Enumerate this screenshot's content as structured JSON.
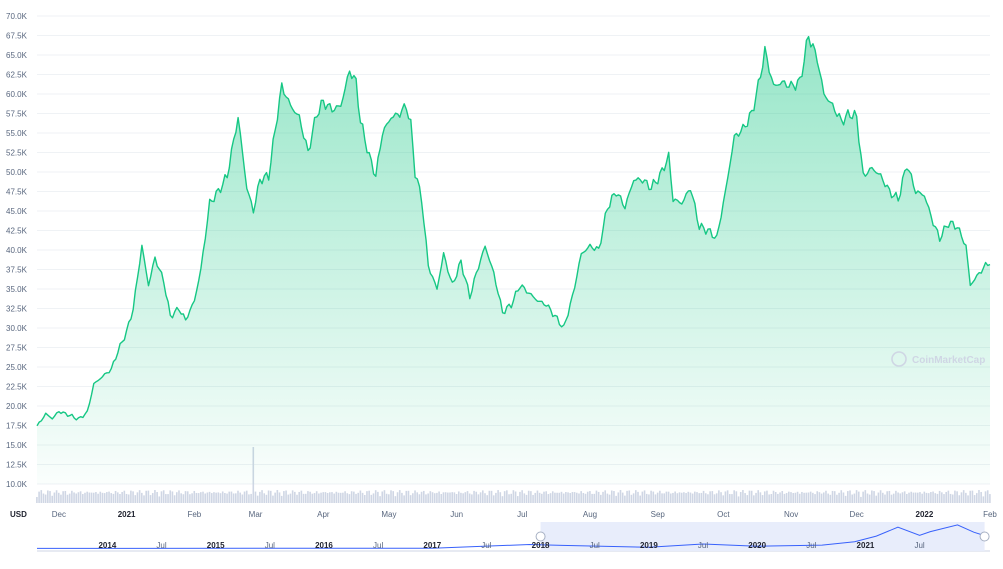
{
  "chart_data": {
    "type": "area",
    "currency": "USD",
    "watermark": "CoinMarketCap",
    "ylim": [
      0,
      70000
    ],
    "yticks": [
      10000,
      12500,
      15000,
      17500,
      20000,
      22500,
      25000,
      27500,
      30000,
      32500,
      35000,
      37500,
      40000,
      42500,
      45000,
      47500,
      50000,
      52500,
      55000,
      57500,
      60000,
      62500,
      65000,
      67500,
      70000
    ],
    "ytick_labels": [
      "10.0K",
      "12.5K",
      "15.0K",
      "17.5K",
      "20.0K",
      "22.5K",
      "25.0K",
      "27.5K",
      "30.0K",
      "32.5K",
      "35.0K",
      "37.5K",
      "40.0K",
      "42.5K",
      "45.0K",
      "47.5K",
      "50.0K",
      "52.5K",
      "55.0K",
      "57.5K",
      "60.0K",
      "62.5K",
      "65.0K",
      "67.5K",
      "70.0K"
    ],
    "x_start": "2020-11-21",
    "x_end": "2022-01-31",
    "xticks": [
      {
        "date": "2020-12-01",
        "label": "Dec",
        "bold": false
      },
      {
        "date": "2021-01-01",
        "label": "2021",
        "bold": true
      },
      {
        "date": "2021-02-01",
        "label": "Feb",
        "bold": false
      },
      {
        "date": "2021-03-01",
        "label": "Mar",
        "bold": false
      },
      {
        "date": "2021-04-01",
        "label": "Apr",
        "bold": false
      },
      {
        "date": "2021-05-01",
        "label": "May",
        "bold": false
      },
      {
        "date": "2021-06-01",
        "label": "Jun",
        "bold": false
      },
      {
        "date": "2021-07-01",
        "label": "Jul",
        "bold": false
      },
      {
        "date": "2021-08-01",
        "label": "Aug",
        "bold": false
      },
      {
        "date": "2021-09-01",
        "label": "Sep",
        "bold": false
      },
      {
        "date": "2021-10-01",
        "label": "Oct",
        "bold": false
      },
      {
        "date": "2021-11-01",
        "label": "Nov",
        "bold": false
      },
      {
        "date": "2021-12-01",
        "label": "Dec",
        "bold": false
      },
      {
        "date": "2022-01-01",
        "label": "2022",
        "bold": true
      },
      {
        "date": "2022-01-31",
        "label": "Feb",
        "bold": false
      }
    ],
    "series": [
      {
        "points": [
          [
            "2020-11-21",
            17400
          ],
          [
            "2020-11-25",
            19000
          ],
          [
            "2020-11-28",
            18400
          ],
          [
            "2020-12-01",
            19300
          ],
          [
            "2020-12-06",
            18800
          ],
          [
            "2020-12-10",
            18300
          ],
          [
            "2020-12-14",
            19200
          ],
          [
            "2020-12-17",
            22800
          ],
          [
            "2020-12-21",
            23800
          ],
          [
            "2020-12-25",
            24700
          ],
          [
            "2020-12-28",
            27000
          ],
          [
            "2021-01-01",
            29500
          ],
          [
            "2021-01-04",
            32500
          ],
          [
            "2021-01-08",
            40500
          ],
          [
            "2021-01-11",
            35500
          ],
          [
            "2021-01-14",
            39000
          ],
          [
            "2021-01-18",
            36000
          ],
          [
            "2021-01-21",
            31500
          ],
          [
            "2021-01-25",
            32500
          ],
          [
            "2021-01-28",
            31000
          ],
          [
            "2021-02-01",
            33500
          ],
          [
            "2021-02-04",
            37500
          ],
          [
            "2021-02-08",
            46000
          ],
          [
            "2021-02-12",
            47500
          ],
          [
            "2021-02-16",
            49500
          ],
          [
            "2021-02-21",
            57000
          ],
          [
            "2021-02-25",
            48000
          ],
          [
            "2021-02-28",
            45000
          ],
          [
            "2021-03-03",
            49000
          ],
          [
            "2021-03-07",
            49500
          ],
          [
            "2021-03-10",
            55500
          ],
          [
            "2021-03-13",
            61000
          ],
          [
            "2021-03-17",
            58500
          ],
          [
            "2021-03-21",
            57000
          ],
          [
            "2021-03-25",
            52500
          ],
          [
            "2021-03-29",
            57500
          ],
          [
            "2021-04-01",
            59000
          ],
          [
            "2021-04-05",
            58000
          ],
          [
            "2021-04-09",
            58500
          ],
          [
            "2021-04-13",
            63000
          ],
          [
            "2021-04-16",
            61500
          ],
          [
            "2021-04-18",
            56500
          ],
          [
            "2021-04-22",
            52000
          ],
          [
            "2021-04-25",
            49500
          ],
          [
            "2021-04-28",
            55000
          ],
          [
            "2021-05-02",
            57000
          ],
          [
            "2021-05-06",
            57500
          ],
          [
            "2021-05-09",
            58500
          ],
          [
            "2021-05-11",
            56000
          ],
          [
            "2021-05-13",
            50000
          ],
          [
            "2021-05-16",
            46500
          ],
          [
            "2021-05-19",
            38000
          ],
          [
            "2021-05-23",
            35000
          ],
          [
            "2021-05-26",
            39500
          ],
          [
            "2021-05-30",
            35500
          ],
          [
            "2021-06-03",
            38500
          ],
          [
            "2021-06-07",
            34000
          ],
          [
            "2021-06-10",
            37000
          ],
          [
            "2021-06-14",
            40500
          ],
          [
            "2021-06-18",
            37000
          ],
          [
            "2021-06-22",
            32000
          ],
          [
            "2021-06-26",
            33000
          ],
          [
            "2021-06-30",
            35500
          ],
          [
            "2021-07-04",
            34500
          ],
          [
            "2021-07-08",
            33500
          ],
          [
            "2021-07-12",
            33000
          ],
          [
            "2021-07-16",
            31500
          ],
          [
            "2021-07-20",
            30000
          ],
          [
            "2021-07-24",
            34000
          ],
          [
            "2021-07-28",
            39500
          ],
          [
            "2021-08-01",
            40500
          ],
          [
            "2021-08-05",
            40000
          ],
          [
            "2021-08-09",
            45500
          ],
          [
            "2021-08-13",
            47500
          ],
          [
            "2021-08-17",
            45500
          ],
          [
            "2021-08-21",
            49000
          ],
          [
            "2021-08-25",
            49000
          ],
          [
            "2021-08-29",
            48000
          ],
          [
            "2021-09-02",
            49500
          ],
          [
            "2021-09-06",
            52000
          ],
          [
            "2021-09-08",
            46500
          ],
          [
            "2021-09-12",
            46000
          ],
          [
            "2021-09-16",
            48000
          ],
          [
            "2021-09-20",
            43000
          ],
          [
            "2021-09-24",
            42500
          ],
          [
            "2021-09-28",
            41500
          ],
          [
            "2021-10-02",
            47500
          ],
          [
            "2021-10-06",
            54500
          ],
          [
            "2021-10-10",
            55500
          ],
          [
            "2021-10-14",
            57500
          ],
          [
            "2021-10-17",
            61000
          ],
          [
            "2021-10-20",
            65500
          ],
          [
            "2021-10-24",
            61000
          ],
          [
            "2021-10-28",
            61500
          ],
          [
            "2021-11-01",
            61000
          ],
          [
            "2021-11-05",
            61500
          ],
          [
            "2021-11-09",
            67500
          ],
          [
            "2021-11-13",
            64500
          ],
          [
            "2021-11-16",
            60000
          ],
          [
            "2021-11-20",
            58500
          ],
          [
            "2021-11-24",
            56500
          ],
          [
            "2021-11-28",
            57500
          ],
          [
            "2021-12-01",
            57000
          ],
          [
            "2021-12-04",
            49500
          ],
          [
            "2021-12-08",
            50500
          ],
          [
            "2021-12-12",
            49500
          ],
          [
            "2021-12-16",
            47500
          ],
          [
            "2021-12-20",
            46500
          ],
          [
            "2021-12-24",
            51000
          ],
          [
            "2021-12-28",
            47500
          ],
          [
            "2022-01-01",
            47000
          ],
          [
            "2022-01-05",
            43500
          ],
          [
            "2022-01-08",
            41500
          ],
          [
            "2022-01-12",
            43500
          ],
          [
            "2022-01-16",
            43000
          ],
          [
            "2022-01-20",
            40500
          ],
          [
            "2022-01-22",
            35500
          ],
          [
            "2022-01-26",
            37000
          ],
          [
            "2022-01-29",
            38000
          ],
          [
            "2022-01-31",
            38500
          ]
        ]
      }
    ],
    "volume_peak_date": "2021-02-28",
    "navigator": {
      "labels": [
        {
          "year": 2014.0,
          "label": "2014",
          "bold": true
        },
        {
          "year": 2014.5,
          "label": "Jul",
          "bold": false
        },
        {
          "year": 2015.0,
          "label": "2015",
          "bold": true
        },
        {
          "year": 2015.5,
          "label": "Jul",
          "bold": false
        },
        {
          "year": 2016.0,
          "label": "2016",
          "bold": true
        },
        {
          "year": 2016.5,
          "label": "Jul",
          "bold": false
        },
        {
          "year": 2017.0,
          "label": "2017",
          "bold": true
        },
        {
          "year": 2017.5,
          "label": "Jul",
          "bold": false
        },
        {
          "year": 2018.0,
          "label": "2018",
          "bold": true
        },
        {
          "year": 2018.5,
          "label": "Jul",
          "bold": false
        },
        {
          "year": 2019.0,
          "label": "2019",
          "bold": true
        },
        {
          "year": 2019.5,
          "label": "Jul",
          "bold": false
        },
        {
          "year": 2020.0,
          "label": "2020",
          "bold": true
        },
        {
          "year": 2020.5,
          "label": "Jul",
          "bold": false
        },
        {
          "year": 2021.0,
          "label": "2021",
          "bold": true
        },
        {
          "year": 2021.5,
          "label": "Jul",
          "bold": false
        }
      ],
      "selection": [
        2018.0,
        2022.1
      ]
    }
  }
}
